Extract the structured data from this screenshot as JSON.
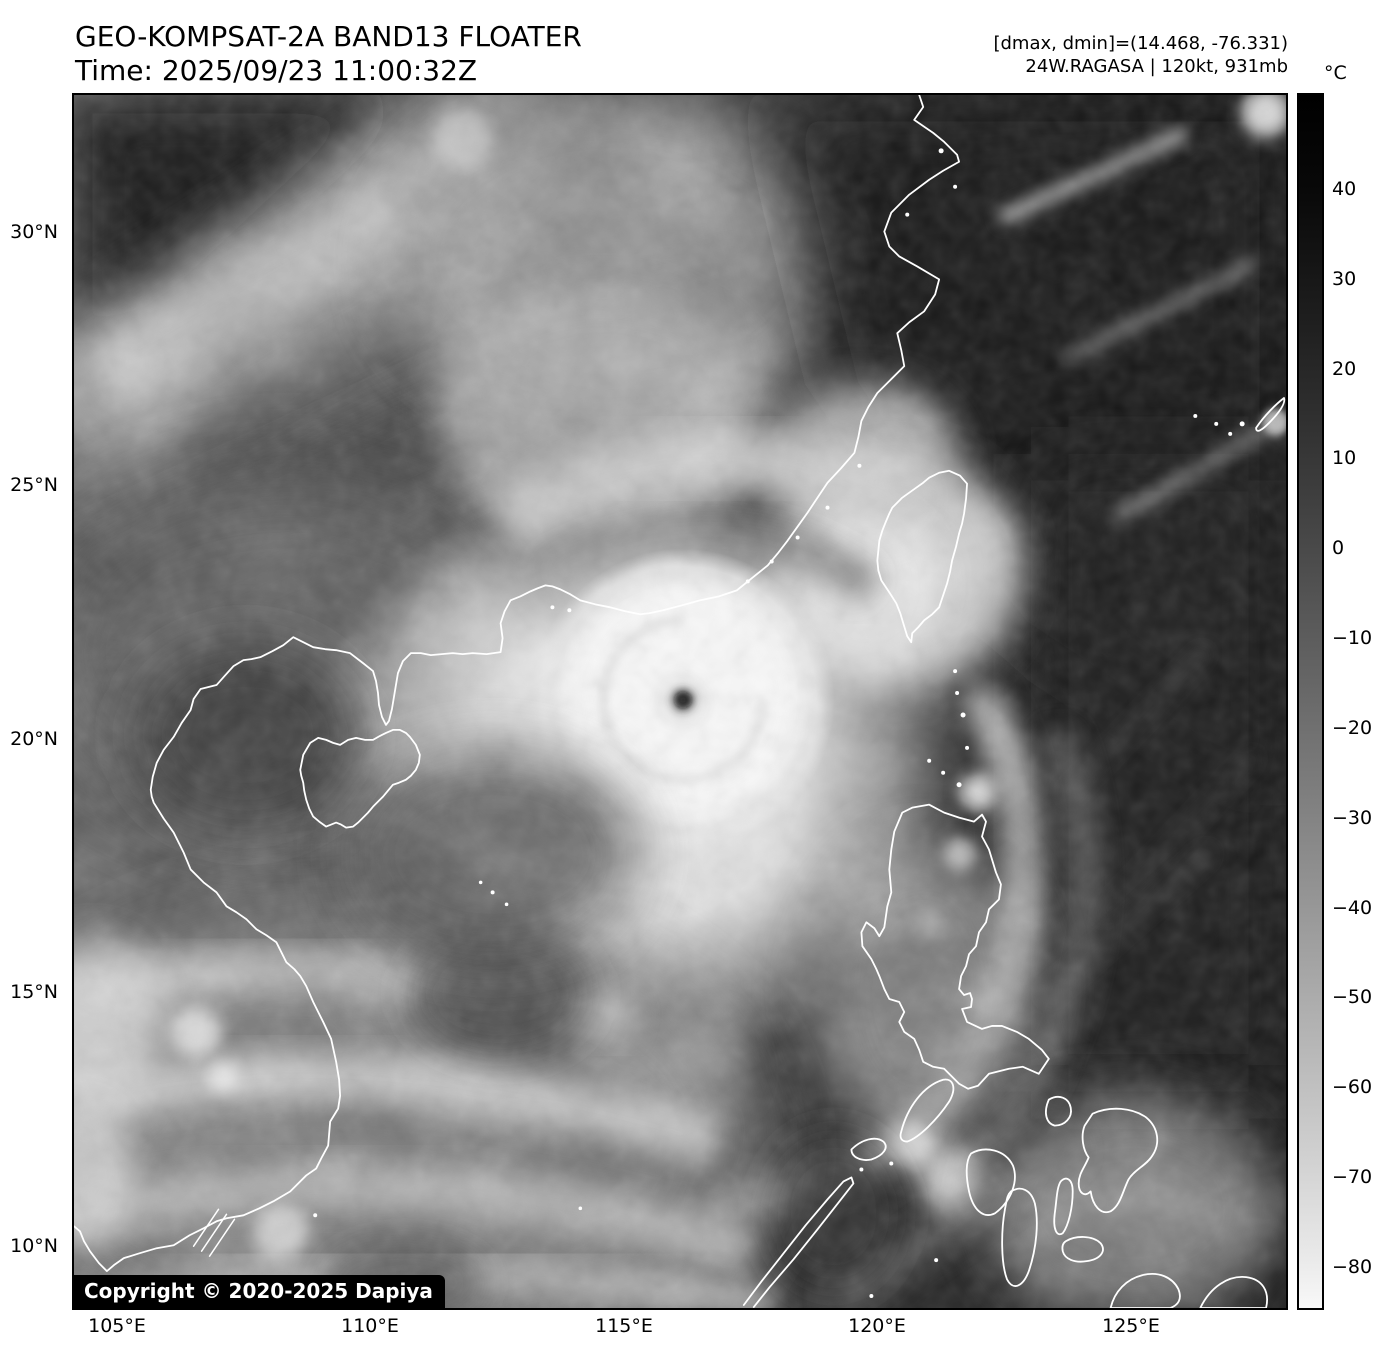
{
  "header": {
    "title": "GEO-KOMPSAT-2A BAND13 FLOATER",
    "time_line": "Time: 2025/09/23 11:00:32Z",
    "range_line": "[dmax, dmin]=(14.468, -76.331)",
    "storm_line": "24W.RAGASA | 120kt, 931mb"
  },
  "colorbar": {
    "unit_label": "°C",
    "tick_labels": [
      "40",
      "30",
      "20",
      "10",
      "0",
      "−10",
      "−20",
      "−30",
      "−40",
      "−50",
      "−60",
      "−70",
      "−80"
    ]
  },
  "axes": {
    "lat_tick_labels": [
      "30°N",
      "25°N",
      "20°N",
      "15°N",
      "10°N"
    ],
    "lon_tick_labels": [
      "105°E",
      "110°E",
      "115°E",
      "120°E",
      "125°E"
    ]
  },
  "footer": {
    "copyright": "Copyright © 2020-2025 Dapiya"
  }
}
